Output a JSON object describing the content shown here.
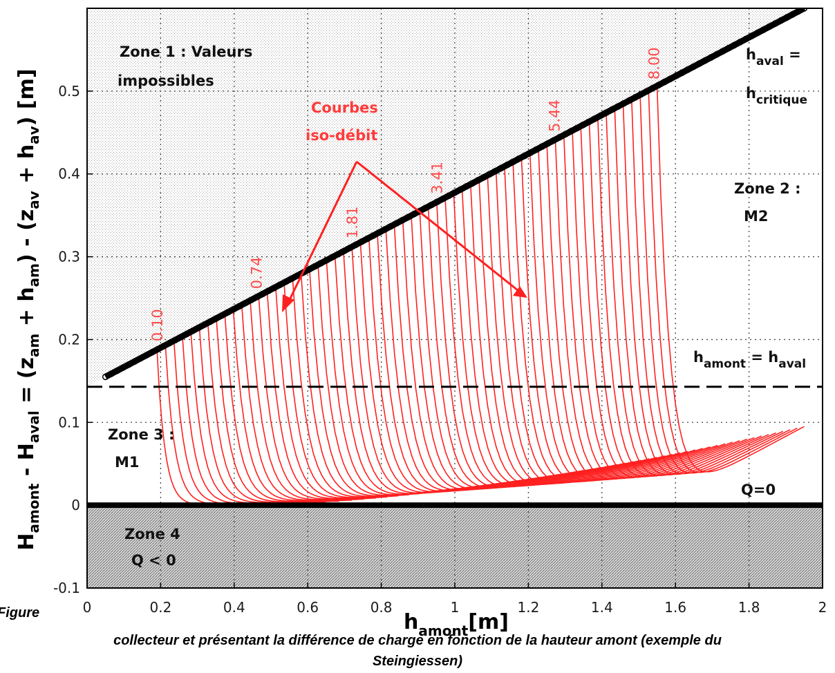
{
  "chart_data": {
    "type": "line",
    "xlabel": {
      "main": "h",
      "sub": "amont",
      "unit": "[m]"
    },
    "ylabel": {
      "p1": "H",
      "p1s": "amont",
      "p2": " - H",
      "p2s": "aval",
      "p3": " = (z",
      "p3s": "am",
      "p4": " + h",
      "p4s": "am",
      "p5": ") - (z",
      "p5s": "av",
      "p6": " + h",
      "p6s": "av",
      "p7": ") [m]"
    },
    "xlim": [
      0,
      2
    ],
    "ylim": [
      -0.1,
      0.6
    ],
    "xticks": [
      "0",
      "0.2",
      "0.4",
      "0.6",
      "0.8",
      "1",
      "1.2",
      "1.4",
      "1.6",
      "1.8",
      "2"
    ],
    "yticks": [
      "-0.1",
      "0",
      "0.1",
      "0.2",
      "0.3",
      "0.4",
      "0.5"
    ],
    "grid": true,
    "critical_line": {
      "x": [
        0.05,
        1.95
      ],
      "y": [
        0.155,
        0.6
      ]
    },
    "equal_depth_line_y": 0.143,
    "zero_line_y": 0,
    "iso_flow_labels": [
      {
        "text": "0.10",
        "x": 0.19
      },
      {
        "text": "0.74",
        "x": 0.46
      },
      {
        "text": "1.81",
        "x": 0.72
      },
      {
        "text": "3.41",
        "x": 0.95
      },
      {
        "text": "5.44",
        "x": 1.27
      },
      {
        "text": "8.00",
        "x": 1.54
      }
    ],
    "iso_flow_curves": {
      "count": 60,
      "x_start": [
        0.19,
        1.55
      ],
      "x_end_max": 1.95,
      "end_y": 0.095
    },
    "annotations": {
      "zone1": [
        "Zone 1 : Valeurs",
        "impossibles"
      ],
      "iso": [
        "Courbes",
        "iso-débit"
      ],
      "hcrit": {
        "a": "h",
        "as": "aval",
        "b": " =",
        "c": "h",
        "cs": "critique"
      },
      "zone2": [
        "Zone 2 :",
        "M2"
      ],
      "heq": {
        "a": "h",
        "as": "amont",
        "b": " = h",
        "bs": "aval"
      },
      "zone3": [
        "Zone 3 :",
        "M1"
      ],
      "q0": "Q=0",
      "zone4": [
        "Zone 4",
        "Q < 0"
      ]
    },
    "colors": {
      "curves": "#ff2020",
      "labels": "#ff4a4a",
      "lines": "#000000"
    }
  },
  "caption": {
    "line1_left": "Figure",
    "line1": "collecteur et présentant la différence de charge en fonction de la hauteur amont (exemple du",
    "line2": "Steingiessen)"
  }
}
